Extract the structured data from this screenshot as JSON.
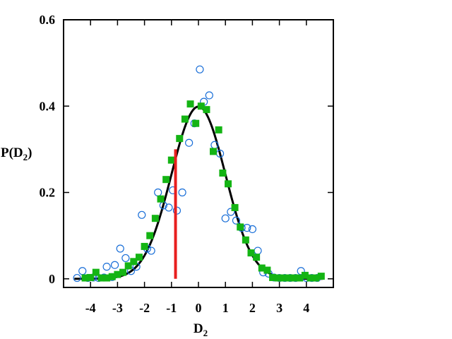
{
  "chart_data": {
    "type": "scatter",
    "title": "",
    "xlabel_main": "D",
    "xlabel_sub": "2",
    "ylabel_main": "P(D",
    "ylabel_sub": "2",
    "ylabel_tail": ")",
    "xlim": [
      -5,
      5
    ],
    "ylim": [
      -0.02,
      0.6
    ],
    "xticks": [
      -4,
      -3,
      -2,
      -1,
      0,
      1,
      2,
      3,
      4
    ],
    "xtick_labels": [
      "-4",
      "-3",
      "-2",
      "-1",
      "0",
      "1",
      "2",
      "3",
      "4"
    ],
    "yticks": [
      0,
      0.2,
      0.4,
      0.6
    ],
    "ytick_labels": [
      "0",
      "0.2",
      "0.4",
      "0.6"
    ],
    "grid": false,
    "legend": "none",
    "series": [
      {
        "marker": "open-circle",
        "color": "#1a6fd8",
        "points": [
          [
            -4.5,
            0.002
          ],
          [
            -4.3,
            0.018
          ],
          [
            -4.1,
            0.002
          ],
          [
            -3.9,
            0.003
          ],
          [
            -3.7,
            0.002
          ],
          [
            -3.5,
            0.003
          ],
          [
            -3.4,
            0.028
          ],
          [
            -3.2,
            0.004
          ],
          [
            -3.1,
            0.032
          ],
          [
            -2.9,
            0.07
          ],
          [
            -2.7,
            0.048
          ],
          [
            -2.5,
            0.018
          ],
          [
            -2.3,
            0.028
          ],
          [
            -2.1,
            0.148
          ],
          [
            -1.9,
            0.07
          ],
          [
            -1.75,
            0.065
          ],
          [
            -1.5,
            0.2
          ],
          [
            -1.3,
            0.17
          ],
          [
            -1.1,
            0.165
          ],
          [
            -0.95,
            0.205
          ],
          [
            -0.8,
            0.158
          ],
          [
            -0.6,
            0.2
          ],
          [
            -0.35,
            0.315
          ],
          [
            -0.15,
            0.36
          ],
          [
            0.05,
            0.485
          ],
          [
            0.2,
            0.41
          ],
          [
            0.4,
            0.425
          ],
          [
            0.6,
            0.31
          ],
          [
            0.8,
            0.29
          ],
          [
            1.0,
            0.14
          ],
          [
            1.2,
            0.155
          ],
          [
            1.4,
            0.135
          ],
          [
            1.6,
            0.118
          ],
          [
            1.8,
            0.118
          ],
          [
            2.0,
            0.115
          ],
          [
            2.2,
            0.065
          ],
          [
            2.4,
            0.015
          ],
          [
            2.6,
            0.012
          ],
          [
            2.8,
            0.003
          ],
          [
            3.0,
            0.002
          ],
          [
            3.2,
            0.002
          ],
          [
            3.4,
            0.002
          ],
          [
            3.6,
            0.002
          ],
          [
            3.8,
            0.018
          ],
          [
            4.0,
            0.002
          ],
          [
            4.2,
            0.002
          ],
          [
            4.4,
            0.002
          ]
        ]
      },
      {
        "marker": "filled-square",
        "color": "#14b414",
        "points": [
          [
            -4.2,
            0.002
          ],
          [
            -4.0,
            0.003
          ],
          [
            -3.8,
            0.015
          ],
          [
            -3.6,
            0.002
          ],
          [
            -3.4,
            0.002
          ],
          [
            -3.2,
            0.005
          ],
          [
            -3.0,
            0.01
          ],
          [
            -2.8,
            0.015
          ],
          [
            -2.6,
            0.03
          ],
          [
            -2.4,
            0.04
          ],
          [
            -2.2,
            0.05
          ],
          [
            -2.0,
            0.075
          ],
          [
            -1.8,
            0.1
          ],
          [
            -1.6,
            0.14
          ],
          [
            -1.4,
            0.185
          ],
          [
            -1.2,
            0.23
          ],
          [
            -1.0,
            0.275
          ],
          [
            -0.7,
            0.325
          ],
          [
            -0.5,
            0.37
          ],
          [
            -0.3,
            0.405
          ],
          [
            -0.1,
            0.36
          ],
          [
            0.1,
            0.4
          ],
          [
            0.3,
            0.392
          ],
          [
            0.55,
            0.295
          ],
          [
            0.75,
            0.345
          ],
          [
            0.9,
            0.245
          ],
          [
            1.1,
            0.22
          ],
          [
            1.35,
            0.165
          ],
          [
            1.55,
            0.12
          ],
          [
            1.75,
            0.09
          ],
          [
            1.95,
            0.06
          ],
          [
            2.15,
            0.05
          ],
          [
            2.35,
            0.025
          ],
          [
            2.55,
            0.02
          ],
          [
            2.75,
            0.003
          ],
          [
            2.95,
            0.002
          ],
          [
            3.15,
            0.002
          ],
          [
            3.35,
            0.002
          ],
          [
            3.55,
            0.002
          ],
          [
            3.75,
            0.002
          ],
          [
            3.95,
            0.008
          ],
          [
            4.15,
            0.002
          ],
          [
            4.35,
            0.002
          ],
          [
            4.55,
            0.006
          ]
        ]
      }
    ],
    "curve": {
      "type": "gaussian",
      "mean": 0,
      "sigma": 1,
      "color": "#000000"
    },
    "marker_line": {
      "x": -0.85,
      "y_from": 0,
      "y_to": 0.3,
      "color": "#e81e1e"
    }
  }
}
